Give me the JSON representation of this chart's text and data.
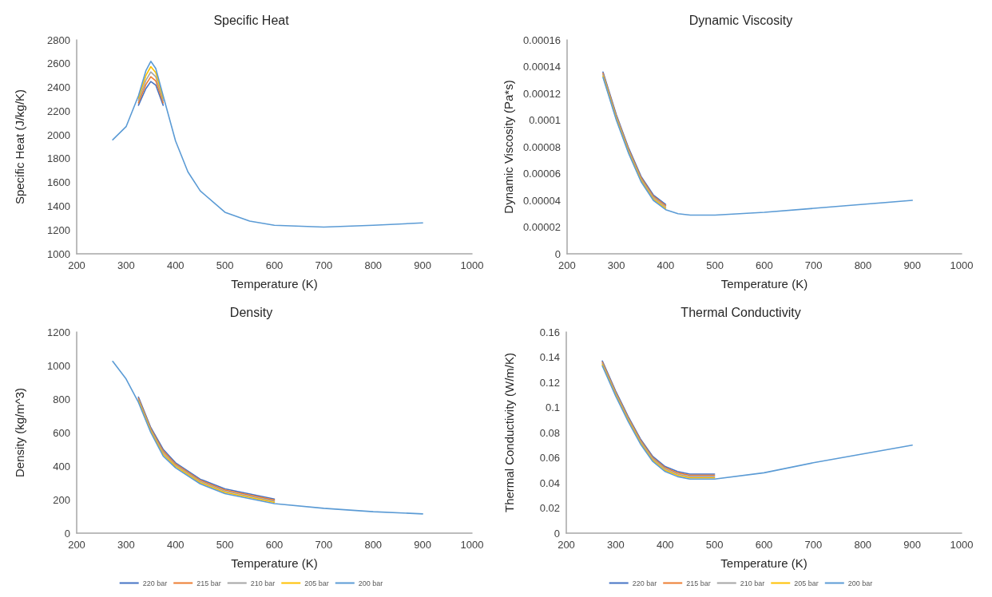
{
  "chart_data": [
    {
      "type": "line",
      "title": "Specific Heat",
      "xlabel": "Temperature (K)",
      "ylabel": "Specific Heat (J/kg/K)",
      "x": [
        273,
        300,
        325,
        340,
        350,
        360,
        375,
        400,
        425,
        450,
        500,
        550,
        600,
        700,
        800,
        900
      ],
      "xlim": [
        200,
        1000
      ],
      "xticks": [
        200,
        300,
        400,
        500,
        600,
        700,
        800,
        900,
        1000
      ],
      "ylim": [
        1000,
        2800
      ],
      "yticks": [
        1000,
        1200,
        1400,
        1600,
        1800,
        2000,
        2200,
        2400,
        2600,
        2800
      ],
      "grid": false,
      "legend": false,
      "marker": "none",
      "line_style": "solid",
      "series": [
        {
          "color": "#4472c4",
          "values": [
            null,
            null,
            2250,
            2390,
            2450,
            2420,
            2250,
            null,
            null,
            null,
            null,
            null,
            null,
            null,
            null,
            null
          ]
        },
        {
          "color": "#ed7d31",
          "values": [
            null,
            null,
            2270,
            2425,
            2490,
            2455,
            2270,
            null,
            null,
            null,
            null,
            null,
            null,
            null,
            null,
            null
          ]
        },
        {
          "color": "#a5a5a5",
          "values": [
            null,
            null,
            2290,
            2460,
            2530,
            2490,
            2290,
            null,
            null,
            null,
            null,
            null,
            null,
            null,
            null,
            null
          ]
        },
        {
          "color": "#ffc000",
          "values": [
            null,
            null,
            2310,
            2500,
            2575,
            2525,
            2310,
            null,
            null,
            null,
            null,
            null,
            null,
            null,
            null,
            null
          ]
        },
        {
          "color": "#5b9bd5",
          "values": [
            1960,
            2070,
            2330,
            2540,
            2620,
            2560,
            2330,
            1950,
            1690,
            1530,
            1350,
            1275,
            1240,
            1225,
            1240,
            1260
          ]
        }
      ]
    },
    {
      "type": "line",
      "title": "Dynamic Viscosity",
      "xlabel": "Temperature (K)",
      "ylabel": "Dynamic Viscosity (Pa*s)",
      "x": [
        273,
        300,
        325,
        350,
        375,
        400,
        425,
        450,
        500,
        600,
        700,
        800,
        900
      ],
      "xlim": [
        200,
        1000
      ],
      "xticks": [
        200,
        300,
        400,
        500,
        600,
        700,
        800,
        900,
        1000
      ],
      "ylim": [
        0,
        0.00016
      ],
      "yticks": [
        0,
        {
          "value": 2e-05,
          "label": "0.00002"
        },
        {
          "value": 4e-05,
          "label": "0.00004"
        },
        {
          "value": 6e-05,
          "label": "0.00006"
        },
        {
          "value": 8e-05,
          "label": "0.00008"
        },
        0.0001,
        0.00012,
        0.00014,
        0.00016
      ],
      "grid": false,
      "legend": false,
      "marker": "none",
      "line_style": "solid",
      "series": [
        {
          "color": "#4472c4",
          "values": [
            0.000136,
            0.000104,
            7.9e-05,
            5.8e-05,
            4.4e-05,
            3.7e-05,
            null,
            null,
            null,
            null,
            null,
            null,
            null
          ]
        },
        {
          "color": "#ed7d31",
          "values": [
            0.000135,
            0.000103,
            7.8e-05,
            5.7e-05,
            4.3e-05,
            3.6e-05,
            null,
            null,
            null,
            null,
            null,
            null,
            null
          ]
        },
        {
          "color": "#a5a5a5",
          "values": [
            0.000134,
            0.000102,
            7.7e-05,
            5.6e-05,
            4.2e-05,
            3.5e-05,
            null,
            null,
            null,
            null,
            null,
            null,
            null
          ]
        },
        {
          "color": "#ffc000",
          "values": [
            0.000133,
            0.000101,
            7.6e-05,
            5.5e-05,
            4.1e-05,
            3.4e-05,
            null,
            null,
            null,
            null,
            null,
            null,
            null
          ]
        },
        {
          "color": "#5b9bd5",
          "values": [
            0.000132,
            0.0001,
            7.5e-05,
            5.4e-05,
            4e-05,
            3.3e-05,
            3e-05,
            2.9e-05,
            2.9e-05,
            3.1e-05,
            3.4e-05,
            3.7e-05,
            4e-05
          ]
        }
      ]
    },
    {
      "type": "line",
      "title": "Density",
      "xlabel": "Temperature (K)",
      "ylabel": "Density (kg/m^3)",
      "x": [
        273,
        300,
        325,
        350,
        375,
        400,
        450,
        500,
        600,
        700,
        800,
        900
      ],
      "xlim": [
        200,
        1000
      ],
      "xticks": [
        200,
        300,
        400,
        500,
        600,
        700,
        800,
        900,
        1000
      ],
      "ylim": [
        0,
        1200
      ],
      "yticks": [
        0,
        200,
        400,
        600,
        800,
        1000,
        1200
      ],
      "grid": false,
      "legend": "bottom",
      "marker": "none",
      "line_style": "solid",
      "series": [
        {
          "name": "220 bar",
          "color": "#4472c4",
          "values": [
            null,
            null,
            812,
            630,
            500,
            420,
            322,
            264,
            204,
            null,
            null,
            null
          ]
        },
        {
          "name": "215 bar",
          "color": "#ed7d31",
          "values": [
            null,
            null,
            804,
            622,
            490,
            412,
            315,
            257,
            197,
            null,
            null,
            null
          ]
        },
        {
          "name": "210 bar",
          "color": "#a5a5a5",
          "values": [
            null,
            null,
            796,
            615,
            480,
            405,
            308,
            250,
            190,
            null,
            null,
            null
          ]
        },
        {
          "name": "205 bar",
          "color": "#ffc000",
          "values": [
            null,
            null,
            788,
            608,
            470,
            398,
            301,
            243,
            183,
            null,
            null,
            null
          ]
        },
        {
          "name": "200 bar",
          "color": "#5b9bd5",
          "values": [
            1025,
            920,
            780,
            600,
            460,
            390,
            294,
            236,
            176,
            148,
            128,
            115
          ]
        }
      ]
    },
    {
      "type": "line",
      "title": "Thermal Conductivity",
      "xlabel": "Temperature (K)",
      "ylabel": "Thermal Conductivity (W/m/K)",
      "x": [
        273,
        300,
        325,
        350,
        375,
        400,
        425,
        450,
        500,
        600,
        700,
        800,
        900
      ],
      "xlim": [
        200,
        1000
      ],
      "xticks": [
        200,
        300,
        400,
        500,
        600,
        700,
        800,
        900,
        1000
      ],
      "ylim": [
        0,
        0.16
      ],
      "yticks": [
        0,
        0.02,
        0.04,
        0.06,
        0.08,
        0.1,
        0.12,
        0.14,
        0.16
      ],
      "grid": false,
      "legend": "bottom",
      "marker": "none",
      "line_style": "solid",
      "series": [
        {
          "name": "220 bar",
          "color": "#4472c4",
          "values": [
            0.137,
            0.113,
            0.093,
            0.075,
            0.061,
            0.053,
            0.049,
            0.047,
            0.047,
            null,
            null,
            null,
            null
          ]
        },
        {
          "name": "215 bar",
          "color": "#ed7d31",
          "values": [
            0.136,
            0.112,
            0.092,
            0.074,
            0.06,
            0.052,
            0.048,
            0.046,
            0.046,
            null,
            null,
            null,
            null
          ]
        },
        {
          "name": "210 bar",
          "color": "#a5a5a5",
          "values": [
            0.135,
            0.111,
            0.091,
            0.073,
            0.059,
            0.051,
            0.047,
            0.045,
            0.045,
            null,
            null,
            null,
            null
          ]
        },
        {
          "name": "205 bar",
          "color": "#ffc000",
          "values": [
            0.134,
            0.11,
            0.09,
            0.072,
            0.058,
            0.05,
            0.046,
            0.044,
            0.044,
            null,
            null,
            null,
            null
          ]
        },
        {
          "name": "200 bar",
          "color": "#5b9bd5",
          "values": [
            0.133,
            0.109,
            0.089,
            0.071,
            0.057,
            0.049,
            0.045,
            0.043,
            0.043,
            0.048,
            0.056,
            0.063,
            0.07
          ]
        }
      ]
    }
  ]
}
